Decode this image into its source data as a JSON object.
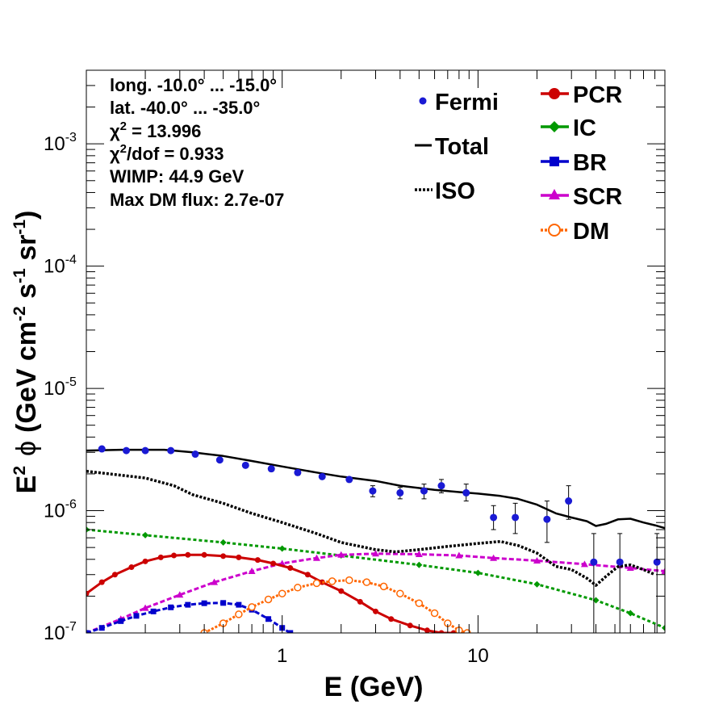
{
  "chart_data": {
    "type": "scatter",
    "xlabel": "E (GeV)",
    "ylabel": {
      "text": "E",
      "sup1": "2",
      "phi": "ϕ",
      "unit": "(GeV cm",
      "sup2": "-2",
      "mid": " s",
      "sup3": "-1",
      "mid2": " sr",
      "sup4": "-1",
      "end": ")"
    },
    "xscale": "log",
    "yscale": "log",
    "xlim": [
      0.1,
      90
    ],
    "ylim": [
      1e-07,
      0.004
    ],
    "x_ticks": [
      {
        "value": 1,
        "label": "1"
      },
      {
        "value": 10,
        "label": "10"
      }
    ],
    "y_ticks": [
      {
        "value": 1e-07,
        "base": "10",
        "exp": "-7"
      },
      {
        "value": 1e-06,
        "base": "10",
        "exp": "-6"
      },
      {
        "value": 1e-05,
        "base": "10",
        "exp": "-5"
      },
      {
        "value": 0.0001,
        "base": "10",
        "exp": "-4"
      },
      {
        "value": 0.001,
        "base": "10",
        "exp": "-3"
      }
    ],
    "info_lines": [
      {
        "text": "long. -10.0° ... -15.0°"
      },
      {
        "text": "lat. -40.0° ... -35.0°"
      },
      {
        "chi": "χ",
        "sup": "2",
        "text": " = 13.996"
      },
      {
        "chi": "χ",
        "sup": "2",
        "text": "/dof = 0.933"
      },
      {
        "text": "WIMP: 44.9 GeV"
      },
      {
        "text": "Max DM flux: 2.7e-07"
      }
    ],
    "legend": [
      {
        "label": "Fermi",
        "key": "fermi"
      },
      {
        "label": "Total",
        "key": "total"
      },
      {
        "label": "ISO",
        "key": "iso"
      },
      {
        "label": "PCR",
        "key": "pcr"
      },
      {
        "label": "IC",
        "key": "ic"
      },
      {
        "label": "BR",
        "key": "br"
      },
      {
        "label": "SCR",
        "key": "scr"
      },
      {
        "label": "DM",
        "key": "dm"
      }
    ],
    "fermi": {
      "name": "Fermi",
      "color": "#1a1ad4",
      "x": [
        0.12,
        0.16,
        0.2,
        0.27,
        0.36,
        0.48,
        0.65,
        0.88,
        1.2,
        1.6,
        2.2,
        2.9,
        4.0,
        5.3,
        6.5,
        8.7,
        12.0,
        15.5,
        22.5,
        29.0,
        39.0,
        53.0,
        82.0
      ],
      "y": [
        3.2e-06,
        3.1e-06,
        3.1e-06,
        3.1e-06,
        2.9e-06,
        2.6e-06,
        2.35e-06,
        2.2e-06,
        2.05e-06,
        1.9e-06,
        1.8e-06,
        1.45e-06,
        1.4e-06,
        1.45e-06,
        1.6e-06,
        1.4e-06,
        8.8e-07,
        8.8e-07,
        8.5e-07,
        1.2e-06,
        3.8e-07,
        3.8e-07,
        3.8e-07
      ],
      "err_lo": [
        3.1e-06,
        3e-06,
        3e-06,
        3e-06,
        2.8e-06,
        2.5e-06,
        2.25e-06,
        2.1e-06,
        1.95e-06,
        1.82e-06,
        1.72e-06,
        1.3e-06,
        1.25e-06,
        1.25e-06,
        1.4e-06,
        1.2e-06,
        7e-07,
        6.5e-07,
        5.5e-07,
        8.5e-07,
        1e-07,
        1e-07,
        1e-07
      ],
      "err_hi": [
        3.3e-06,
        3.2e-06,
        3.2e-06,
        3.2e-06,
        3e-06,
        2.7e-06,
        2.45e-06,
        2.3e-06,
        2.15e-06,
        1.98e-06,
        1.88e-06,
        1.6e-06,
        1.55e-06,
        1.65e-06,
        1.8e-06,
        1.65e-06,
        1.1e-06,
        1.15e-06,
        1.2e-06,
        1.6e-06,
        6.5e-07,
        6.5e-07,
        6.5e-07
      ]
    },
    "total": {
      "name": "Total",
      "color": "#000000",
      "x": [
        0.1,
        0.15,
        0.25,
        0.35,
        0.5,
        0.7,
        1.0,
        1.5,
        2.0,
        3.0,
        4.0,
        6.0,
        8.0,
        10.0,
        13.0,
        16.0,
        20.0,
        25.0,
        30.0,
        36.0,
        40.0,
        45.0,
        52.0,
        60.0,
        70.0,
        80.0,
        90.0
      ],
      "y": [
        3.1e-06,
        3.15e-06,
        3.15e-06,
        3e-06,
        2.8e-06,
        2.55e-06,
        2.3e-06,
        2.05e-06,
        1.9e-06,
        1.75e-06,
        1.6e-06,
        1.48e-06,
        1.42e-06,
        1.38e-06,
        1.32e-06,
        1.25e-06,
        1.12e-06,
        9.5e-07,
        8.8e-07,
        8.2e-07,
        7.5e-07,
        7.8e-07,
        8.5e-07,
        8.6e-07,
        8e-07,
        7.6e-07,
        7.2e-07
      ]
    },
    "iso": {
      "name": "ISO",
      "color": "#000000",
      "x": [
        0.1,
        0.15,
        0.2,
        0.28,
        0.35,
        0.5,
        0.7,
        1.0,
        1.5,
        2.0,
        3.0,
        3.8,
        5.0,
        7.0,
        10.0,
        13.0,
        16.0,
        20.0,
        25.0,
        30.0,
        36.0,
        40.0,
        45.0,
        52.0,
        60.0,
        70.0,
        80.0
      ],
      "y": [
        2.1e-06,
        1.95e-06,
        1.85e-06,
        1.6e-06,
        1.35e-06,
        1.15e-06,
        9.5e-07,
        8e-07,
        6.5e-07,
        5.5e-07,
        4.8e-07,
        4.6e-07,
        4.8e-07,
        5.1e-07,
        5.4e-07,
        5.6e-07,
        5.2e-07,
        4.5e-07,
        3.5e-07,
        3.3e-07,
        2.8e-07,
        2.45e-07,
        2.9e-07,
        3.5e-07,
        3.6e-07,
        3.3e-07,
        3e-07
      ]
    },
    "pcr": {
      "name": "PCR",
      "color": "#cc0000",
      "x": [
        0.1,
        0.12,
        0.14,
        0.17,
        0.2,
        0.24,
        0.28,
        0.33,
        0.4,
        0.5,
        0.6,
        0.75,
        0.9,
        1.1,
        1.35,
        1.6,
        2.0,
        2.5,
        3.0,
        3.6,
        4.5,
        5.5,
        6.5,
        7.5
      ],
      "y": [
        2.1e-07,
        2.6e-07,
        3e-07,
        3.45e-07,
        3.85e-07,
        4.15e-07,
        4.3e-07,
        4.35e-07,
        4.35e-07,
        4.25e-07,
        4.15e-07,
        3.95e-07,
        3.7e-07,
        3.4e-07,
        3e-07,
        2.6e-07,
        2.2e-07,
        1.8e-07,
        1.5e-07,
        1.3e-07,
        1.15e-07,
        1.05e-07,
        1e-07,
        1e-07
      ]
    },
    "ic": {
      "name": "IC",
      "color": "#009900",
      "x": [
        0.1,
        0.2,
        0.5,
        1.0,
        2.0,
        5.0,
        10.0,
        20.0,
        40.0,
        60.0,
        90.0
      ],
      "y": [
        7e-07,
        6.3e-07,
        5.5e-07,
        4.9e-07,
        4.3e-07,
        3.6e-07,
        3.1e-07,
        2.5e-07,
        1.85e-07,
        1.45e-07,
        1.1e-07
      ]
    },
    "br": {
      "name": "BR",
      "color": "#0000cc",
      "x": [
        0.1,
        0.12,
        0.15,
        0.18,
        0.22,
        0.27,
        0.33,
        0.4,
        0.5,
        0.6,
        0.7,
        0.85,
        1.0,
        1.1
      ],
      "y": [
        1e-07,
        1.1e-07,
        1.25e-07,
        1.38e-07,
        1.5e-07,
        1.62e-07,
        1.7e-07,
        1.75e-07,
        1.76e-07,
        1.7e-07,
        1.55e-07,
        1.3e-07,
        1.1e-07,
        1e-07
      ]
    },
    "scr": {
      "name": "SCR",
      "color": "#cc00cc",
      "x": [
        0.1,
        0.15,
        0.2,
        0.3,
        0.45,
        0.7,
        1.0,
        1.5,
        2.0,
        3.0,
        5.0,
        8.0,
        12.0,
        20.0,
        35.0,
        60.0,
        90.0
      ],
      "y": [
        1e-07,
        1.3e-07,
        1.6e-07,
        2.05e-07,
        2.6e-07,
        3.2e-07,
        3.7e-07,
        4.1e-07,
        4.35e-07,
        4.45e-07,
        4.4e-07,
        4.3e-07,
        4.1e-07,
        3.9e-07,
        3.65e-07,
        3.4e-07,
        3.2e-07
      ]
    },
    "dm": {
      "name": "DM",
      "color": "#ff6600",
      "x": [
        0.4,
        0.5,
        0.6,
        0.7,
        0.85,
        1.0,
        1.2,
        1.5,
        1.8,
        2.2,
        2.7,
        3.3,
        4.0,
        5.0,
        6.0,
        7.0,
        8.0,
        8.8
      ],
      "y": [
        1e-07,
        1.2e-07,
        1.42e-07,
        1.63e-07,
        1.88e-07,
        2.1e-07,
        2.35e-07,
        2.55e-07,
        2.65e-07,
        2.7e-07,
        2.6e-07,
        2.4e-07,
        2.1e-07,
        1.75e-07,
        1.45e-07,
        1.2e-07,
        1.05e-07,
        1e-07
      ]
    }
  }
}
